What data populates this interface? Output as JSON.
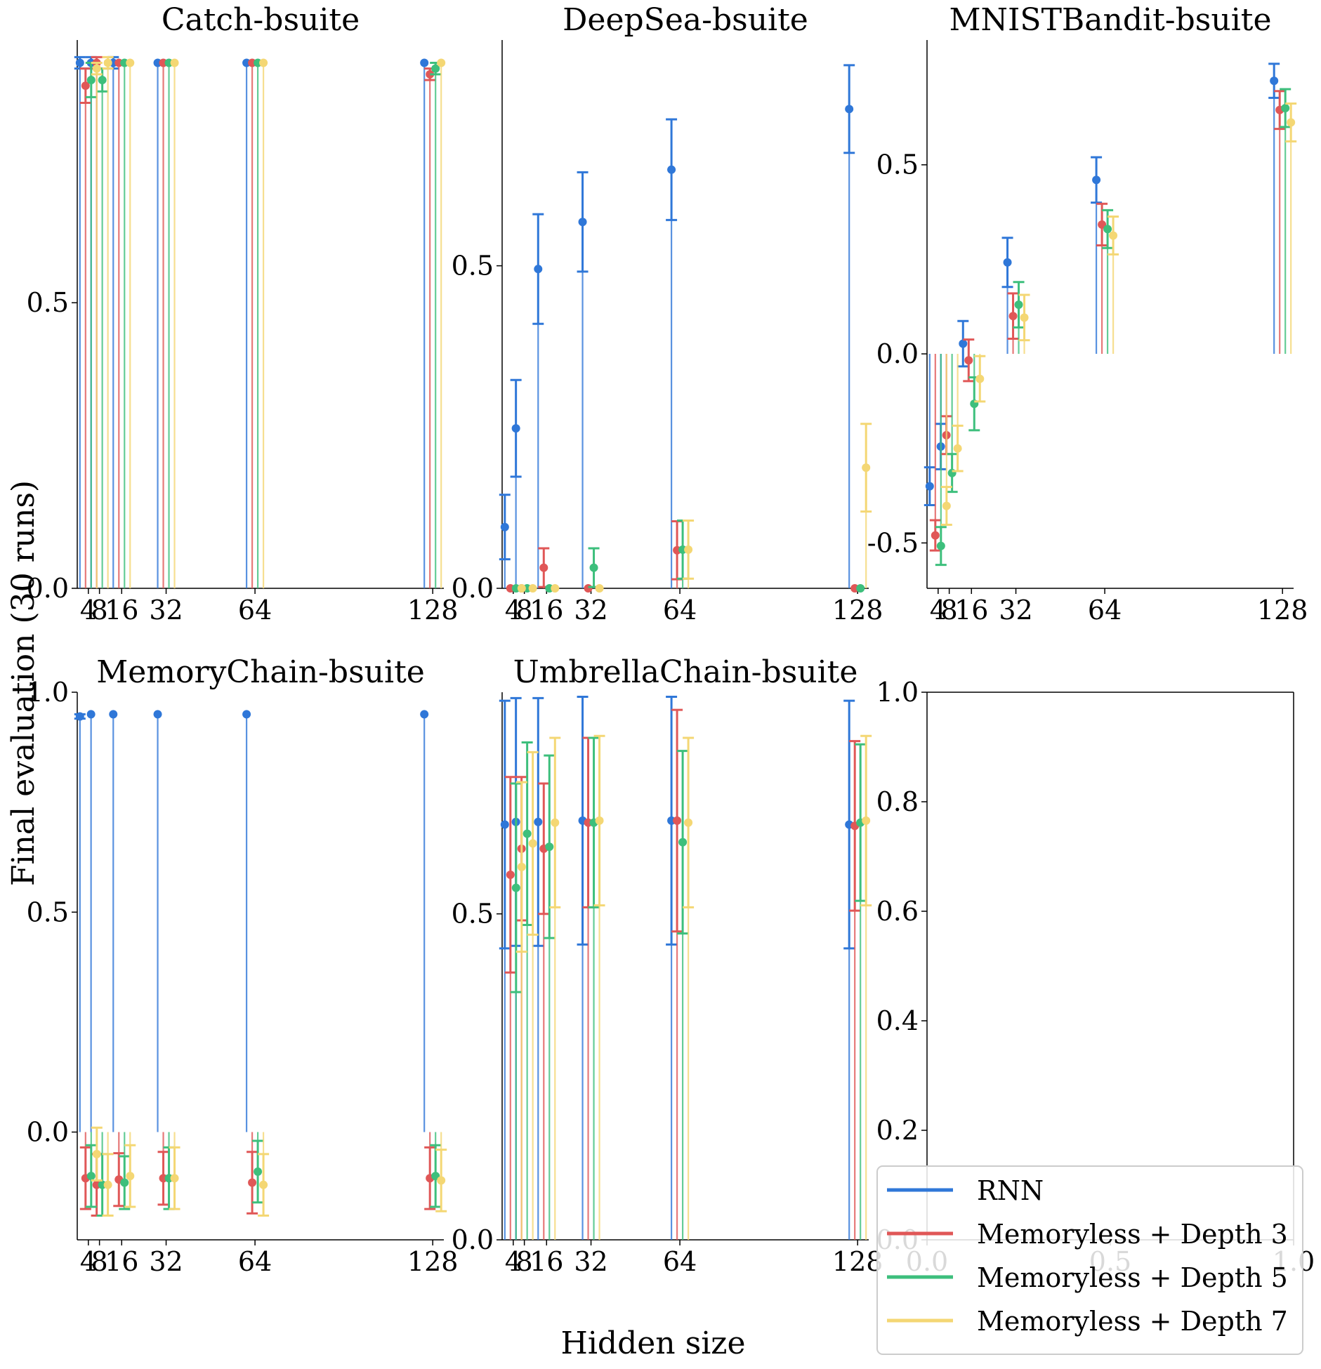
{
  "figure": {
    "xlabel": "Hidden size",
    "ylabel": "Final evaluation (30 runs)"
  },
  "legend": {
    "placement": "lower-right",
    "items": [
      {
        "label": "RNN",
        "color": "#2f77d8"
      },
      {
        "label": "Memoryless + Depth 3",
        "color": "#e05757"
      },
      {
        "label": "Memoryless + Depth 5",
        "color": "#3dbf7c"
      },
      {
        "label": "Memoryless + Depth 7",
        "color": "#f4d774"
      }
    ]
  },
  "chart_data": [
    {
      "type": "scatter",
      "title": "Catch-bsuite",
      "x": [
        4,
        8,
        16,
        32,
        64,
        128
      ],
      "xticks": [
        "4",
        "8",
        "16",
        "32",
        "64",
        "128"
      ],
      "ylim": [
        0,
        0.96
      ],
      "yticks": [
        "0.0",
        "0.5"
      ],
      "grid": false,
      "series": [
        {
          "name": "RNN",
          "values": [
            0.92,
            0.92,
            0.92,
            0.92,
            0.92,
            0.92
          ],
          "err": [
            0.01,
            0.01,
            0.01,
            0.0,
            0.0,
            0.0
          ]
        },
        {
          "name": "Memoryless + Depth 3",
          "values": [
            0.88,
            0.92,
            0.92,
            0.92,
            0.92,
            0.9
          ],
          "err": [
            0.03,
            0.01,
            0.0,
            0.0,
            0.0,
            0.01
          ]
        },
        {
          "name": "Memoryless + Depth 5",
          "values": [
            0.89,
            0.89,
            0.92,
            0.92,
            0.92,
            0.91
          ],
          "err": [
            0.03,
            0.02,
            0.0,
            0.0,
            0.0,
            0.01
          ]
        },
        {
          "name": "Memoryless + Depth 7",
          "values": [
            0.91,
            0.92,
            0.92,
            0.92,
            0.92,
            0.92
          ],
          "err": [
            0.01,
            0.01,
            0.0,
            0.0,
            0.0,
            0.0
          ]
        }
      ]
    },
    {
      "type": "scatter",
      "title": "DeepSea-bsuite",
      "x": [
        4,
        8,
        16,
        32,
        64,
        128
      ],
      "xticks": [
        "4",
        "8",
        "16",
        "32",
        "64",
        "128"
      ],
      "ylim": [
        0,
        0.85
      ],
      "yticks": [
        "0.0",
        "0.5"
      ],
      "grid": false,
      "series": [
        {
          "name": "RNN",
          "values": [
            0.095,
            0.248,
            0.495,
            0.568,
            0.649,
            0.743
          ],
          "err": [
            0.05,
            0.075,
            0.085,
            0.077,
            0.078,
            0.068
          ]
        },
        {
          "name": "Memoryless + Depth 3",
          "values": [
            0.0,
            0.0,
            0.032,
            0.0,
            0.059,
            0.0
          ],
          "err": [
            0.0,
            0.0,
            0.03,
            0.0,
            0.045,
            0.0
          ]
        },
        {
          "name": "Memoryless + Depth 5",
          "values": [
            0.0,
            0.0,
            0.0,
            0.032,
            0.06,
            0.0
          ],
          "err": [
            0.0,
            0.0,
            0.0,
            0.03,
            0.045,
            0.0
          ]
        },
        {
          "name": "Memoryless + Depth 7",
          "values": [
            0.0,
            0.0,
            0.0,
            0.0,
            0.06,
            0.187
          ],
          "err": [
            0.0,
            0.0,
            0.0,
            0.0,
            0.045,
            0.068
          ]
        }
      ]
    },
    {
      "type": "scatter",
      "title": "MNISTBandit-bsuite",
      "x": [
        4,
        8,
        16,
        32,
        64,
        128
      ],
      "xticks": [
        "4",
        "8",
        "16",
        "32",
        "64",
        "128"
      ],
      "ylim": [
        -0.62,
        0.83
      ],
      "yticks": [
        "-0.5",
        "0.0",
        "0.5"
      ],
      "grid": false,
      "series": [
        {
          "name": "RNN",
          "values": [
            -0.35,
            -0.245,
            0.027,
            0.242,
            0.46,
            0.722
          ],
          "err": [
            0.05,
            0.06,
            0.06,
            0.065,
            0.06,
            0.045
          ]
        },
        {
          "name": "Memoryless + Depth 3",
          "values": [
            -0.48,
            -0.215,
            -0.017,
            0.1,
            0.342,
            0.645
          ],
          "err": [
            0.04,
            0.05,
            0.055,
            0.06,
            0.055,
            0.05
          ]
        },
        {
          "name": "Memoryless + Depth 5",
          "values": [
            -0.508,
            -0.315,
            -0.132,
            0.13,
            0.33,
            0.65
          ],
          "err": [
            0.05,
            0.05,
            0.07,
            0.06,
            0.05,
            0.05
          ]
        },
        {
          "name": "Memoryless + Depth 7",
          "values": [
            -0.402,
            -0.25,
            -0.066,
            0.096,
            0.313,
            0.612
          ],
          "err": [
            0.05,
            0.06,
            0.06,
            0.06,
            0.05,
            0.05
          ]
        }
      ]
    },
    {
      "type": "scatter",
      "title": "MemoryChain-bsuite",
      "x": [
        4,
        8,
        16,
        32,
        64,
        128
      ],
      "xticks": [
        "4",
        "8",
        "16",
        "32",
        "64",
        "128"
      ],
      "ylim": [
        -0.245,
        1.0
      ],
      "yticks": [
        "0.0",
        "0.5",
        "1.0"
      ],
      "grid": false,
      "series": [
        {
          "name": "RNN",
          "values": [
            0.945,
            0.95,
            0.95,
            0.95,
            0.95,
            0.95
          ],
          "err": [
            0.005,
            0.0,
            0.0,
            0.0,
            0.0,
            0.0
          ]
        },
        {
          "name": "Memoryless + Depth 3",
          "values": [
            -0.105,
            -0.12,
            -0.108,
            -0.105,
            -0.115,
            -0.105
          ],
          "err": [
            0.07,
            0.07,
            0.06,
            0.06,
            0.07,
            0.07
          ]
        },
        {
          "name": "Memoryless + Depth 5",
          "values": [
            -0.1,
            -0.12,
            -0.115,
            -0.105,
            -0.09,
            -0.1
          ],
          "err": [
            0.07,
            0.07,
            0.06,
            0.07,
            0.07,
            0.07
          ]
        },
        {
          "name": "Memoryless + Depth 7",
          "values": [
            -0.05,
            -0.12,
            -0.1,
            -0.105,
            -0.12,
            -0.11
          ],
          "err": [
            0.06,
            0.07,
            0.07,
            0.07,
            0.07,
            0.07
          ]
        }
      ]
    },
    {
      "type": "scatter",
      "title": "UmbrellaChain-bsuite",
      "x": [
        4,
        8,
        16,
        32,
        64,
        128
      ],
      "xticks": [
        "4",
        "8",
        "16",
        "32",
        "64",
        "128"
      ],
      "ylim": [
        0,
        0.84
      ],
      "yticks": [
        "0.0",
        "0.5"
      ],
      "grid": false,
      "series": [
        {
          "name": "RNN",
          "values": [
            0.637,
            0.641,
            0.641,
            0.643,
            0.643,
            0.637
          ],
          "err": [
            0.19,
            0.19,
            0.19,
            0.19,
            0.19,
            0.19
          ]
        },
        {
          "name": "Memoryless + Depth 3",
          "values": [
            0.56,
            0.6,
            0.6,
            0.64,
            0.643,
            0.635
          ],
          "err": [
            0.15,
            0.11,
            0.1,
            0.13,
            0.17,
            0.13
          ]
        },
        {
          "name": "Memoryless + Depth 5",
          "values": [
            0.54,
            0.623,
            0.603,
            0.64,
            0.61,
            0.64
          ],
          "err": [
            0.16,
            0.14,
            0.14,
            0.13,
            0.14,
            0.12
          ]
        },
        {
          "name": "Memoryless + Depth 7",
          "values": [
            0.572,
            0.608,
            0.64,
            0.643,
            0.64,
            0.643
          ],
          "err": [
            0.13,
            0.14,
            0.13,
            0.13,
            0.13,
            0.13
          ]
        }
      ]
    },
    {
      "type": "scatter",
      "title": "",
      "x": [],
      "xlim": [
        0,
        1
      ],
      "xticks": [
        "0.0",
        "0.5",
        "1.0"
      ],
      "ylim": [
        0,
        1
      ],
      "yticks": [
        "0.0",
        "0.2",
        "0.4",
        "0.6",
        "0.8",
        "1.0"
      ],
      "grid": false,
      "series": []
    }
  ]
}
